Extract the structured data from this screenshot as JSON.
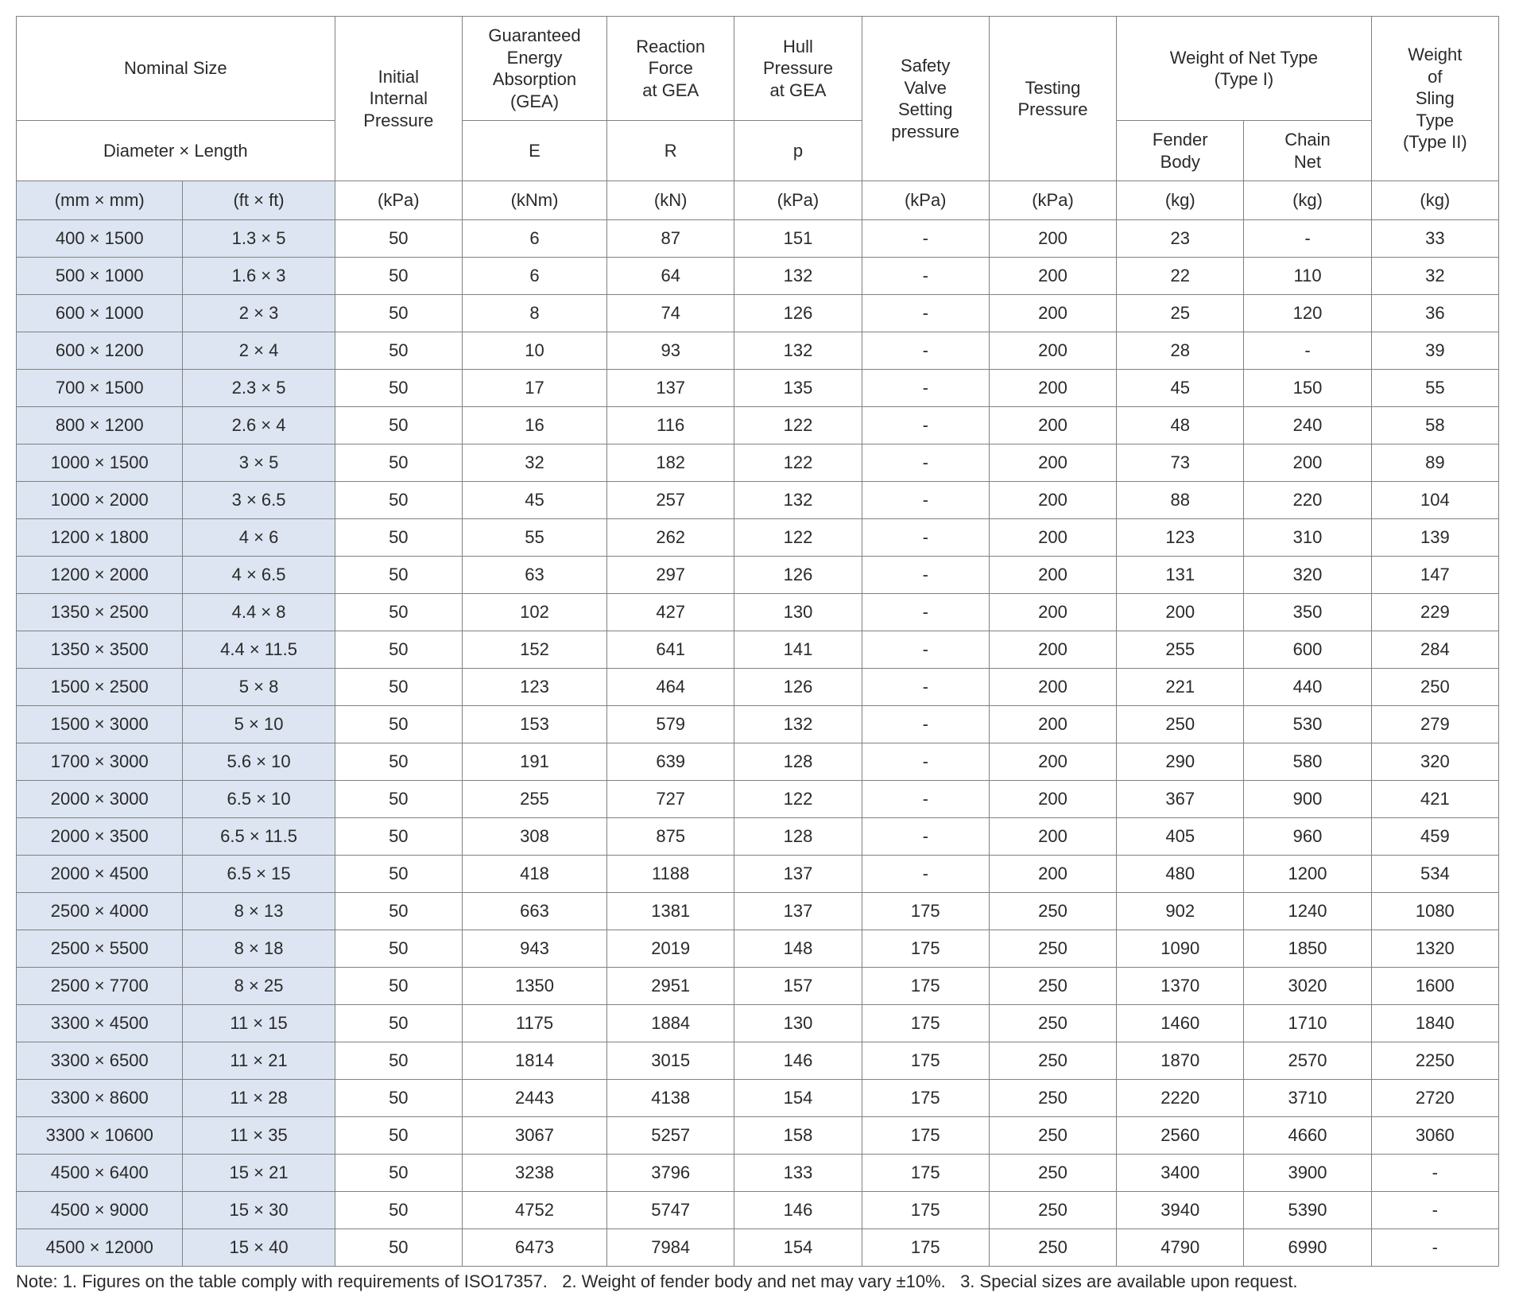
{
  "colors": {
    "size_col_bg": "#dde5f2",
    "border": "#808080",
    "background": "#ffffff",
    "text": "#2a2a2a"
  },
  "typography": {
    "body_font": "Arial, Helvetica, sans-serif",
    "cell_fontsize_pt": 16,
    "note_fontsize_pt": 16
  },
  "headers": {
    "nominal_size": "Nominal Size",
    "diameter_length": "Diameter × Length",
    "initial_internal_pressure": "Initial\nInternal\nPressure",
    "gea": "Guaranteed\nEnergy\nAbsorption\n(GEA)",
    "reaction_force": "Reaction\nForce\nat GEA",
    "hull_pressure": "Hull\nPressure\nat GEA",
    "safety_valve": "Safety\nValve\nSetting\npressure",
    "testing_pressure": "Testing\nPressure",
    "weight_net_type": "Weight of Net Type\n(Type I)",
    "fender_body": "Fender\nBody",
    "chain_net": "Chain\nNet",
    "weight_sling": "Weight\nof\nSling\nType\n(Type II)",
    "sub_e": "E",
    "sub_r": "R",
    "sub_p": "p"
  },
  "units": {
    "mm": "(mm × mm)",
    "ft": "(ft × ft)",
    "kpa": "(kPa)",
    "knm": "(kNm)",
    "kn": "(kN)",
    "kg": "(kg)"
  },
  "rows": [
    {
      "mm": "400 × 1500",
      "ft": "1.3 × 5",
      "iip": "50",
      "e": "6",
      "r": "87",
      "p": "151",
      "sv": "-",
      "tp": "200",
      "fb": "23",
      "cn": "-",
      "sl": "33"
    },
    {
      "mm": "500 × 1000",
      "ft": "1.6 × 3",
      "iip": "50",
      "e": "6",
      "r": "64",
      "p": "132",
      "sv": "-",
      "tp": "200",
      "fb": "22",
      "cn": "110",
      "sl": "32"
    },
    {
      "mm": "600 × 1000",
      "ft": "2 × 3",
      "iip": "50",
      "e": "8",
      "r": "74",
      "p": "126",
      "sv": "-",
      "tp": "200",
      "fb": "25",
      "cn": "120",
      "sl": "36"
    },
    {
      "mm": "600 × 1200",
      "ft": "2 × 4",
      "iip": "50",
      "e": "10",
      "r": "93",
      "p": "132",
      "sv": "-",
      "tp": "200",
      "fb": "28",
      "cn": "-",
      "sl": "39"
    },
    {
      "mm": "700 × 1500",
      "ft": "2.3 × 5",
      "iip": "50",
      "e": "17",
      "r": "137",
      "p": "135",
      "sv": "-",
      "tp": "200",
      "fb": "45",
      "cn": "150",
      "sl": "55"
    },
    {
      "mm": "800 × 1200",
      "ft": "2.6 × 4",
      "iip": "50",
      "e": "16",
      "r": "116",
      "p": "122",
      "sv": "-",
      "tp": "200",
      "fb": "48",
      "cn": "240",
      "sl": "58"
    },
    {
      "mm": "1000 × 1500",
      "ft": "3 × 5",
      "iip": "50",
      "e": "32",
      "r": "182",
      "p": "122",
      "sv": "-",
      "tp": "200",
      "fb": "73",
      "cn": "200",
      "sl": "89"
    },
    {
      "mm": "1000 × 2000",
      "ft": "3 × 6.5",
      "iip": "50",
      "e": "45",
      "r": "257",
      "p": "132",
      "sv": "-",
      "tp": "200",
      "fb": "88",
      "cn": "220",
      "sl": "104"
    },
    {
      "mm": "1200 × 1800",
      "ft": "4 × 6",
      "iip": "50",
      "e": "55",
      "r": "262",
      "p": "122",
      "sv": "-",
      "tp": "200",
      "fb": "123",
      "cn": "310",
      "sl": "139"
    },
    {
      "mm": "1200 × 2000",
      "ft": "4 × 6.5",
      "iip": "50",
      "e": "63",
      "r": "297",
      "p": "126",
      "sv": "-",
      "tp": "200",
      "fb": "131",
      "cn": "320",
      "sl": "147"
    },
    {
      "mm": "1350 × 2500",
      "ft": "4.4 × 8",
      "iip": "50",
      "e": "102",
      "r": "427",
      "p": "130",
      "sv": "-",
      "tp": "200",
      "fb": "200",
      "cn": "350",
      "sl": "229"
    },
    {
      "mm": "1350 × 3500",
      "ft": "4.4 × 11.5",
      "iip": "50",
      "e": "152",
      "r": "641",
      "p": "141",
      "sv": "-",
      "tp": "200",
      "fb": "255",
      "cn": "600",
      "sl": "284"
    },
    {
      "mm": "1500 × 2500",
      "ft": "5 × 8",
      "iip": "50",
      "e": "123",
      "r": "464",
      "p": "126",
      "sv": "-",
      "tp": "200",
      "fb": "221",
      "cn": "440",
      "sl": "250"
    },
    {
      "mm": "1500 × 3000",
      "ft": "5 × 10",
      "iip": "50",
      "e": "153",
      "r": "579",
      "p": "132",
      "sv": "-",
      "tp": "200",
      "fb": "250",
      "cn": "530",
      "sl": "279"
    },
    {
      "mm": "1700 × 3000",
      "ft": "5.6 × 10",
      "iip": "50",
      "e": "191",
      "r": "639",
      "p": "128",
      "sv": "-",
      "tp": "200",
      "fb": "290",
      "cn": "580",
      "sl": "320"
    },
    {
      "mm": "2000 × 3000",
      "ft": "6.5 × 10",
      "iip": "50",
      "e": "255",
      "r": "727",
      "p": "122",
      "sv": "-",
      "tp": "200",
      "fb": "367",
      "cn": "900",
      "sl": "421"
    },
    {
      "mm": "2000 × 3500",
      "ft": "6.5 × 11.5",
      "iip": "50",
      "e": "308",
      "r": "875",
      "p": "128",
      "sv": "-",
      "tp": "200",
      "fb": "405",
      "cn": "960",
      "sl": "459"
    },
    {
      "mm": "2000 × 4500",
      "ft": "6.5 × 15",
      "iip": "50",
      "e": "418",
      "r": "1188",
      "p": "137",
      "sv": "-",
      "tp": "200",
      "fb": "480",
      "cn": "1200",
      "sl": "534"
    },
    {
      "mm": "2500 × 4000",
      "ft": "8 × 13",
      "iip": "50",
      "e": "663",
      "r": "1381",
      "p": "137",
      "sv": "175",
      "tp": "250",
      "fb": "902",
      "cn": "1240",
      "sl": "1080"
    },
    {
      "mm": "2500 × 5500",
      "ft": "8 × 18",
      "iip": "50",
      "e": "943",
      "r": "2019",
      "p": "148",
      "sv": "175",
      "tp": "250",
      "fb": "1090",
      "cn": "1850",
      "sl": "1320"
    },
    {
      "mm": "2500 × 7700",
      "ft": "8 × 25",
      "iip": "50",
      "e": "1350",
      "r": "2951",
      "p": "157",
      "sv": "175",
      "tp": "250",
      "fb": "1370",
      "cn": "3020",
      "sl": "1600"
    },
    {
      "mm": "3300 × 4500",
      "ft": "11 × 15",
      "iip": "50",
      "e": "1175",
      "r": "1884",
      "p": "130",
      "sv": "175",
      "tp": "250",
      "fb": "1460",
      "cn": "1710",
      "sl": "1840"
    },
    {
      "mm": "3300 × 6500",
      "ft": "11 × 21",
      "iip": "50",
      "e": "1814",
      "r": "3015",
      "p": "146",
      "sv": "175",
      "tp": "250",
      "fb": "1870",
      "cn": "2570",
      "sl": "2250"
    },
    {
      "mm": "3300 × 8600",
      "ft": "11 × 28",
      "iip": "50",
      "e": "2443",
      "r": "4138",
      "p": "154",
      "sv": "175",
      "tp": "250",
      "fb": "2220",
      "cn": "3710",
      "sl": "2720"
    },
    {
      "mm": "3300 × 10600",
      "ft": "11 × 35",
      "iip": "50",
      "e": "3067",
      "r": "5257",
      "p": "158",
      "sv": "175",
      "tp": "250",
      "fb": "2560",
      "cn": "4660",
      "sl": "3060"
    },
    {
      "mm": "4500 × 6400",
      "ft": "15 × 21",
      "iip": "50",
      "e": "3238",
      "r": "3796",
      "p": "133",
      "sv": "175",
      "tp": "250",
      "fb": "3400",
      "cn": "3900",
      "sl": "-"
    },
    {
      "mm": "4500 × 9000",
      "ft": "15 × 30",
      "iip": "50",
      "e": "4752",
      "r": "5747",
      "p": "146",
      "sv": "175",
      "tp": "250",
      "fb": "3940",
      "cn": "5390",
      "sl": "-"
    },
    {
      "mm": "4500 × 12000",
      "ft": "15 × 40",
      "iip": "50",
      "e": "6473",
      "r": "7984",
      "p": "154",
      "sv": "175",
      "tp": "250",
      "fb": "4790",
      "cn": "6990",
      "sl": "-"
    }
  ],
  "note": "Note: 1. Figures on the table comply with requirements of ISO17357.   2. Weight of fender body and net may vary ±10%.   3. Special sizes are available upon request."
}
